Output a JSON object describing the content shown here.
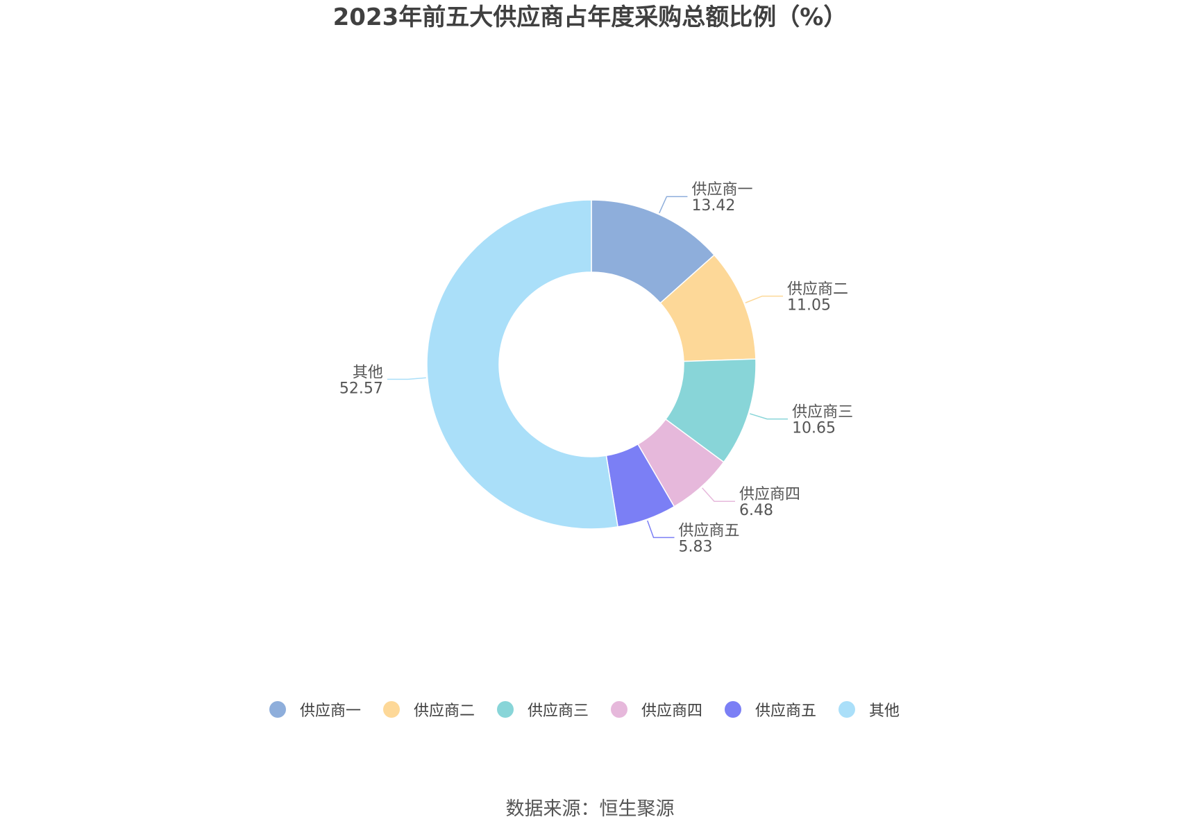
{
  "chart_data": {
    "type": "pie",
    "title": "2023年前五大供应商占年度采购总额比例（%）",
    "categories": [
      "供应商一",
      "供应商二",
      "供应商三",
      "供应商四",
      "供应商五",
      "其他"
    ],
    "values": [
      13.42,
      11.05,
      10.65,
      6.48,
      5.83,
      52.57
    ],
    "value_labels": [
      "13.42",
      "11.05",
      "10.65",
      "6.48",
      "5.83",
      "52.57"
    ],
    "colors": [
      "#8eaedb",
      "#fdd898",
      "#88d5d8",
      "#e6b8db",
      "#7b7ff5",
      "#aadff9"
    ],
    "donut": true,
    "legend_position": "bottom"
  },
  "footer": {
    "source": "数据来源：恒生聚源"
  }
}
